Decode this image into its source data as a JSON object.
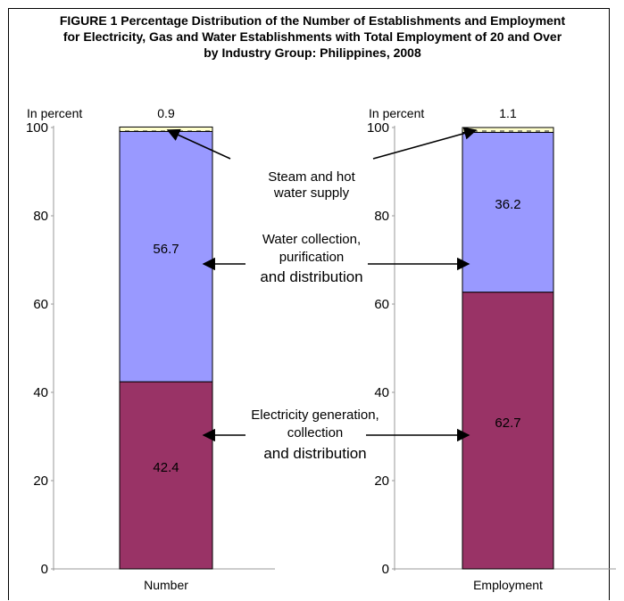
{
  "title_lines": [
    "FIGURE 1 Percentage Distribution of the Number of Establishments and Employment",
    "for Electricity, Gas and Water Establishments with Total Employment of 20 and Over",
    "by Industry Group: Philippines, 2008"
  ],
  "colors": {
    "electricity": "#993366",
    "water": "#9999ff",
    "steam": "#ffffcc"
  },
  "chart_data": {
    "type": "bar",
    "stacked": true,
    "unit_label": "In percent",
    "ylim": [
      0,
      100
    ],
    "yticks": [
      0,
      20,
      40,
      60,
      80,
      100
    ],
    "categories": [
      "Number",
      "Employment"
    ],
    "series": [
      {
        "name": "Electricity generation, collection and distribution",
        "label_lines": [
          "Electricity generation,",
          "collection",
          "and distribution"
        ],
        "values": [
          42.4,
          62.7
        ],
        "labels": [
          "42.4",
          "62.7"
        ]
      },
      {
        "name": "Water collection, purification and distribution",
        "label_lines": [
          "Water collection,",
          "purification",
          "and distribution"
        ],
        "values": [
          56.7,
          36.2
        ],
        "labels": [
          "56.7",
          "36.2"
        ]
      },
      {
        "name": "Steam and hot water supply",
        "label_lines": [
          "Steam and hot",
          "water supply"
        ],
        "values": [
          0.9,
          1.1
        ],
        "labels": [
          "0.9",
          "1.1"
        ]
      }
    ]
  }
}
